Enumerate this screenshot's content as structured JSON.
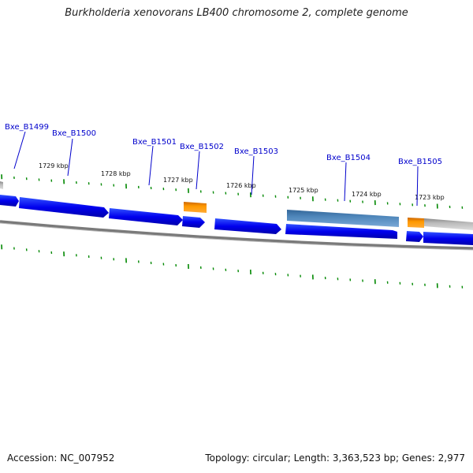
{
  "title": "Burkholderia xenovorans LB400 chromosome 2, complete genome",
  "footer": {
    "accession": "Accession: NC_007952",
    "summary": "Topology: circular; Length: 3,363,523 bp; Genes: 2,977"
  },
  "tick_labels": [
    "1729 kbp",
    "1728 kbp",
    "1727 kbp",
    "1726 kbp",
    "1725 kbp",
    "1724 kbp",
    "1723 kbp"
  ],
  "genes": [
    {
      "label": "Bxe_B1499",
      "type": "CDS"
    },
    {
      "label": "Bxe_B1500",
      "type": "CDS"
    },
    {
      "label": "Bxe_B1501",
      "type": "CDS"
    },
    {
      "label": "Bxe_B1502",
      "type": "CDS"
    },
    {
      "label": "Bxe_B1503",
      "type": "CDS"
    },
    {
      "label": "Bxe_B1504",
      "type": "CDS"
    },
    {
      "label": "Bxe_B1505",
      "type": "CDS"
    }
  ],
  "colors": {
    "cds": "#0000ee",
    "rna": "#ff9900",
    "other": "#5588bb",
    "backbone": "#808080",
    "tick": "#008800",
    "label": "#0000cc"
  }
}
